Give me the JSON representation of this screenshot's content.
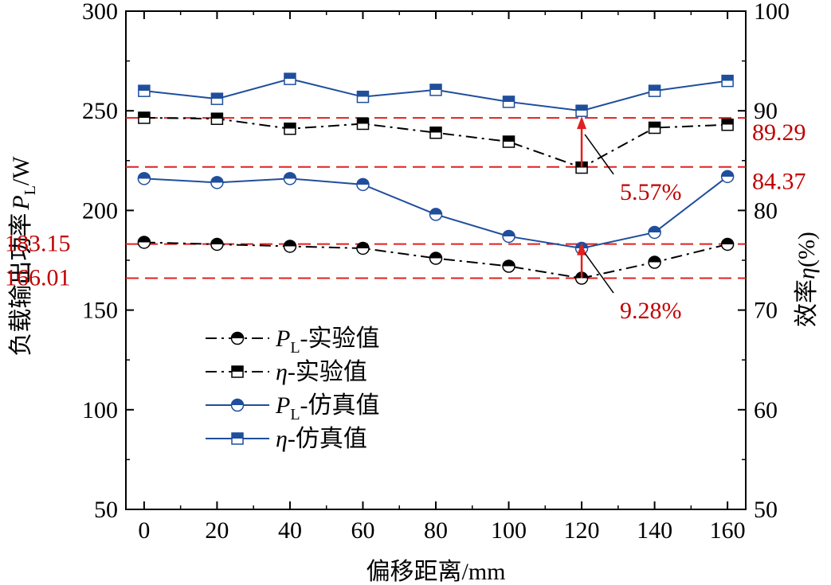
{
  "chart_data": {
    "type": "line",
    "x": [
      0,
      20,
      40,
      60,
      80,
      100,
      120,
      140,
      160
    ],
    "xlabel": "偏移距离/mm",
    "xlim": [
      -5,
      165
    ],
    "xticks": [
      "0",
      "20",
      "40",
      "60",
      "80",
      "100",
      "120",
      "140",
      "160"
    ],
    "ylabel_left": "负载输出功率",
    "ylabel_left_symbol": "P",
    "ylabel_left_sub": "L",
    "ylabel_left_unit": "/W",
    "ylim_left": [
      50,
      300
    ],
    "yticks_left": [
      "50",
      "100",
      "150",
      "200",
      "250",
      "300"
    ],
    "ylabel_right": "效率",
    "ylabel_right_symbol": "η",
    "ylabel_right_unit": "(%)",
    "ylim_right": [
      50,
      100
    ],
    "yticks_right": [
      "50",
      "60",
      "70",
      "80",
      "90",
      "100"
    ],
    "series": [
      {
        "name": "-实验值",
        "symbol": "P",
        "sub": "L",
        "axis": "left",
        "style": "dashdot",
        "color": "#000000",
        "marker": "half-circle",
        "values": [
          184,
          183,
          182,
          181,
          176,
          172,
          166,
          174,
          183
        ]
      },
      {
        "name": "-实验值",
        "symbol": "η",
        "sub": "",
        "axis": "right",
        "style": "dashdot",
        "color": "#000000",
        "marker": "half-square",
        "values": [
          89.3,
          89.2,
          88.2,
          88.7,
          87.8,
          86.9,
          84.3,
          88.3,
          88.6
        ]
      },
      {
        "name": "-仿真值",
        "symbol": "P",
        "sub": "L",
        "axis": "left",
        "style": "solid",
        "color": "#1f4e9c",
        "marker": "half-circle",
        "values": [
          216,
          214,
          216,
          213,
          198,
          187,
          181,
          189,
          217
        ]
      },
      {
        "name": "-仿真值",
        "symbol": "η",
        "sub": "",
        "axis": "right",
        "style": "solid",
        "color": "#1f4e9c",
        "marker": "half-square",
        "values": [
          92,
          91.2,
          93.2,
          91.4,
          92.1,
          90.9,
          90,
          92,
          93
        ]
      }
    ],
    "reference_lines": [
      {
        "axis": "left",
        "value": 183.15,
        "label": "183.15"
      },
      {
        "axis": "left",
        "value": 166.01,
        "label": "166.01"
      },
      {
        "axis": "right",
        "value": 89.29,
        "label": "89.29"
      },
      {
        "axis": "right",
        "value": 84.37,
        "label": "84.37"
      }
    ],
    "annotations": [
      {
        "text": "5.57%",
        "x": 120,
        "axis": "right",
        "from": 84.37,
        "to": 89.29
      },
      {
        "text": "9.28%",
        "x": 120,
        "axis": "left",
        "from": 166.01,
        "to": 183.15
      }
    ],
    "colors": {
      "reference": "#e02020",
      "reference_text": "#c00000",
      "sim": "#1f4e9c",
      "exp": "#000000"
    }
  }
}
